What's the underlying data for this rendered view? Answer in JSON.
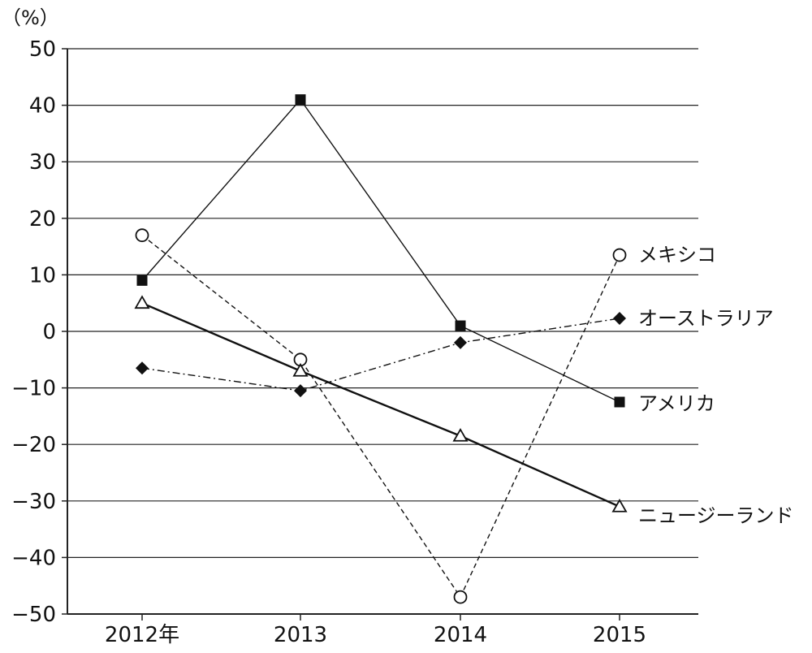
{
  "chart_data": {
    "type": "line",
    "unit_label": "（%）",
    "categories": [
      "2012年",
      "2013",
      "2014",
      "2015"
    ],
    "ylim": [
      -50,
      50
    ],
    "yticks": [
      "50",
      "40",
      "30",
      "20",
      "10",
      "0",
      "−10",
      "−20",
      "−30",
      "−40",
      "−50"
    ],
    "ytick_values": [
      50,
      40,
      30,
      20,
      10,
      0,
      -10,
      -20,
      -30,
      -40,
      -50
    ],
    "grid": true,
    "series": [
      {
        "name": "メキシコ",
        "values": [
          17,
          -5,
          -47,
          13.5
        ],
        "marker": "circle-open",
        "line": "dashed"
      },
      {
        "name": "オーストラリア",
        "values": [
          -6.5,
          -10.5,
          -2,
          2.3
        ],
        "marker": "diamond-filled",
        "line": "dash-dot"
      },
      {
        "name": "アメリカ",
        "values": [
          9,
          41,
          1,
          -12.5
        ],
        "marker": "square-filled",
        "line": "solid"
      },
      {
        "name": "ニュージーランド",
        "values": [
          5,
          -7,
          -18.5,
          -31
        ],
        "marker": "triangle-open",
        "line": "solid-thick"
      }
    ]
  }
}
